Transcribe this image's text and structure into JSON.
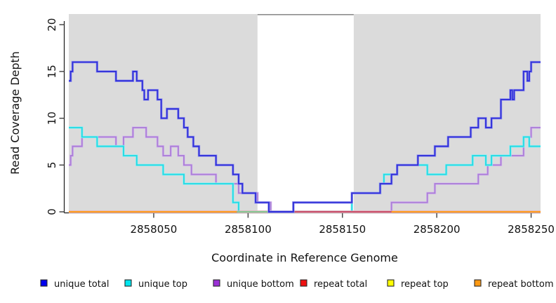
{
  "figure": {
    "background": "#ffffff",
    "band_color": "#DBDBDB",
    "gap_border_color": "#8E8E8E",
    "axis_color": "#1a1a1a",
    "tick_color": "#3f3f3f"
  },
  "chart_data": {
    "type": "line",
    "subtype": "step",
    "title": "",
    "xlabel": "Coordinate in Reference Genome",
    "ylabel": "Read Coverage Depth",
    "xlim": [
      2858005,
      2858255
    ],
    "ylim": [
      0,
      21
    ],
    "x_ticks": [
      2858050,
      2858100,
      2858150,
      2858200,
      2858250
    ],
    "y_ticks": [
      0,
      5,
      10,
      15,
      20
    ],
    "grid": false,
    "legend_position": "bottom",
    "shaded_regions": [
      [
        2858005,
        2858105
      ],
      [
        2858156,
        2858255
      ]
    ],
    "gap_region": [
      2858105,
      2858156
    ],
    "series": [
      {
        "name": "unique total",
        "legend_color": "#0000EE",
        "line_color": "#3030D9",
        "steps": [
          [
            2858005,
            14
          ],
          [
            2858006,
            15
          ],
          [
            2858007,
            16
          ],
          [
            2858020,
            15
          ],
          [
            2858030,
            14
          ],
          [
            2858039,
            15
          ],
          [
            2858041,
            14
          ],
          [
            2858044,
            13
          ],
          [
            2858045,
            12
          ],
          [
            2858047,
            13
          ],
          [
            2858052,
            12
          ],
          [
            2858054,
            10
          ],
          [
            2858057,
            11
          ],
          [
            2858063,
            10
          ],
          [
            2858066,
            9
          ],
          [
            2858068,
            8
          ],
          [
            2858071,
            7
          ],
          [
            2858074,
            6
          ],
          [
            2858083,
            5
          ],
          [
            2858092,
            4
          ],
          [
            2858095,
            3
          ],
          [
            2858097,
            2
          ],
          [
            2858104,
            1
          ],
          [
            2858111,
            0
          ],
          [
            2858124,
            1
          ],
          [
            2858155,
            2
          ],
          [
            2858170,
            3
          ],
          [
            2858176,
            4
          ],
          [
            2858179,
            5
          ],
          [
            2858190,
            6
          ],
          [
            2858199,
            7
          ],
          [
            2858206,
            8
          ],
          [
            2858218,
            9
          ],
          [
            2858222,
            10
          ],
          [
            2858226,
            9
          ],
          [
            2858229,
            10
          ],
          [
            2858234,
            12
          ],
          [
            2858239,
            13
          ],
          [
            2858240,
            12
          ],
          [
            2858241,
            13
          ],
          [
            2858246,
            15
          ],
          [
            2858248,
            14
          ],
          [
            2858249,
            15
          ],
          [
            2858250,
            16
          ],
          [
            2858255,
            16
          ]
        ]
      },
      {
        "name": "unique top",
        "legend_color": "#00E5EE",
        "line_color": "#26DBE4",
        "steps": [
          [
            2858005,
            9
          ],
          [
            2858012,
            8
          ],
          [
            2858020,
            7
          ],
          [
            2858034,
            6
          ],
          [
            2858041,
            5
          ],
          [
            2858055,
            4
          ],
          [
            2858066,
            3
          ],
          [
            2858092,
            1
          ],
          [
            2858095,
            0
          ],
          [
            2858155,
            2
          ],
          [
            2858170,
            3
          ],
          [
            2858172,
            4
          ],
          [
            2858179,
            5
          ],
          [
            2858195,
            4
          ],
          [
            2858205,
            5
          ],
          [
            2858219,
            6
          ],
          [
            2858226,
            5
          ],
          [
            2858229,
            6
          ],
          [
            2858239,
            7
          ],
          [
            2858246,
            8
          ],
          [
            2858249,
            7
          ],
          [
            2858255,
            7
          ]
        ]
      },
      {
        "name": "unique bottom",
        "legend_color": "#9B30D6",
        "line_color": "#AC7ED8",
        "steps": [
          [
            2858005,
            5
          ],
          [
            2858006,
            6
          ],
          [
            2858007,
            7
          ],
          [
            2858012,
            8
          ],
          [
            2858030,
            7
          ],
          [
            2858034,
            8
          ],
          [
            2858039,
            9
          ],
          [
            2858046,
            8
          ],
          [
            2858052,
            7
          ],
          [
            2858055,
            6
          ],
          [
            2858059,
            7
          ],
          [
            2858063,
            6
          ],
          [
            2858066,
            5
          ],
          [
            2858070,
            4
          ],
          [
            2858083,
            3
          ],
          [
            2858095,
            2
          ],
          [
            2858105,
            1
          ],
          [
            2858112,
            0
          ],
          [
            2858176,
            1
          ],
          [
            2858195,
            2
          ],
          [
            2858199,
            3
          ],
          [
            2858222,
            4
          ],
          [
            2858227,
            5
          ],
          [
            2858234,
            6
          ],
          [
            2858246,
            8
          ],
          [
            2858250,
            9
          ],
          [
            2858255,
            9
          ]
        ]
      },
      {
        "name": "repeat total",
        "legend_color": "#EE1111",
        "line_color": "#C9506B",
        "steps": [
          [
            2858005,
            0
          ],
          [
            2858255,
            0
          ]
        ]
      },
      {
        "name": "repeat top",
        "legend_color": "#FFFF00",
        "line_color": "#F5E642",
        "steps": [
          [
            2858005,
            0
          ],
          [
            2858255,
            0
          ]
        ]
      },
      {
        "name": "repeat bottom",
        "legend_color": "#FF9912",
        "line_color": "#FF9D1E",
        "steps": [
          [
            2858005,
            0
          ],
          [
            2858255,
            0
          ]
        ]
      }
    ],
    "baseline_overlays": [
      {
        "from": 2858005,
        "to": 2858094,
        "color": "#FF9D1E",
        "meaning": "repeat bottom visible"
      },
      {
        "from": 2858094,
        "to": 2858111,
        "color": "#84C993",
        "meaning": "unique top + repeat bottom overlap"
      },
      {
        "from": 2858176,
        "to": 2858255,
        "color": "#FF9D1E",
        "meaning": "repeat bottom visible"
      }
    ]
  },
  "legend": {
    "items": [
      {
        "label": "unique total",
        "color": "#0000EE"
      },
      {
        "label": "unique top",
        "color": "#00E5EE"
      },
      {
        "label": "unique bottom",
        "color": "#9B30D6"
      },
      {
        "label": "repeat total",
        "color": "#EE1111"
      },
      {
        "label": "repeat top",
        "color": "#FFFF00"
      },
      {
        "label": "repeat bottom",
        "color": "#FF9912"
      }
    ]
  }
}
